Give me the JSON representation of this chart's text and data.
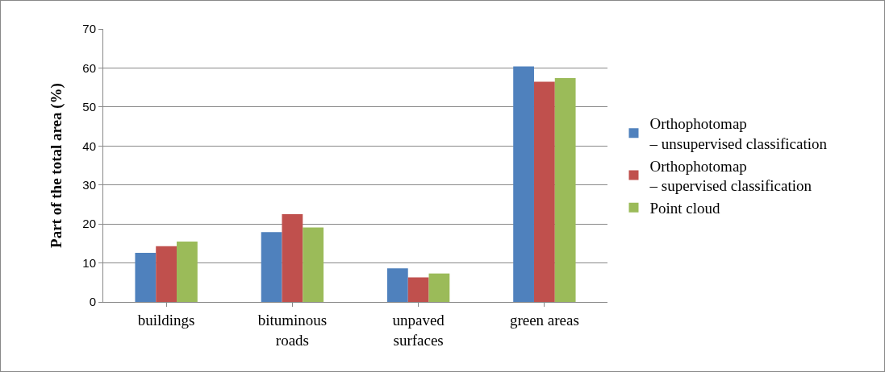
{
  "chart_data": {
    "type": "bar",
    "ylabel": "Part of the total area (%)",
    "categories": [
      "buildings",
      "bituminous\nroads",
      "unpaved\nsurfaces",
      "green areas"
    ],
    "series": [
      {
        "name": "Orthophotomap\n– unsupervised classification",
        "color": "#4f81bd",
        "values": [
          12.6,
          17.9,
          8.6,
          60.4
        ]
      },
      {
        "name": "Orthophotomap\n– supervised classification",
        "color": "#c0504d",
        "values": [
          14.3,
          22.5,
          6.3,
          56.5
        ]
      },
      {
        "name": "Point cloud",
        "color": "#9bbb59",
        "values": [
          15.5,
          19.1,
          7.3,
          57.4
        ]
      }
    ],
    "ylim": [
      0,
      70
    ],
    "yticks": [
      0,
      10,
      20,
      30,
      40,
      50,
      60,
      70
    ],
    "grid": "y",
    "legend": "right"
  }
}
